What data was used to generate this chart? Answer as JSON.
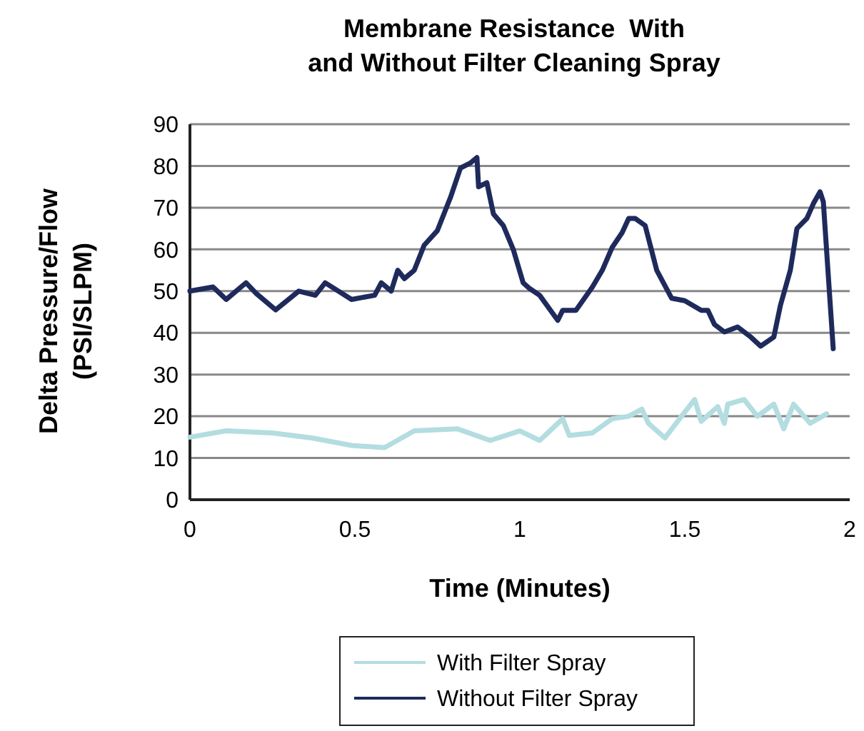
{
  "chart_data": {
    "type": "line",
    "title": "Membrane Resistance  With\nand Without Filter Cleaning Spray",
    "xlabel": "Time (Minutes)",
    "ylabel": "Delta Pressure/Flow\n(PSI/SLPM)",
    "xlim": [
      0,
      2
    ],
    "xticks": [
      0,
      0.5,
      1,
      1.5,
      2
    ],
    "ylim": [
      0,
      90
    ],
    "yticks": [
      0,
      10,
      20,
      30,
      40,
      50,
      60,
      70,
      80,
      90
    ],
    "grid": "y",
    "legend": "bottom",
    "line_style": "solid",
    "marker": "none",
    "series": [
      {
        "name": "With Filter Spray",
        "color": "#b3dde0",
        "x": [
          0,
          0.11,
          0.25,
          0.37,
          0.49,
          0.59,
          0.68,
          0.81,
          0.91,
          1.0,
          1.06,
          1.13,
          1.15,
          1.22,
          1.28,
          1.33,
          1.37,
          1.39,
          1.44,
          1.49,
          1.53,
          1.55,
          1.6,
          1.62,
          1.63,
          1.68,
          1.72,
          1.77,
          1.8,
          1.83,
          1.88,
          1.93
        ],
        "values": [
          15,
          16.5,
          16,
          14.8,
          13,
          12.5,
          16.5,
          17,
          14.2,
          16.5,
          14.2,
          19.4,
          15.4,
          16,
          19.4,
          20,
          21.7,
          18.3,
          14.8,
          20,
          24,
          18.8,
          22.3,
          18.3,
          22.9,
          24,
          20,
          22.9,
          17,
          22.9,
          18.3,
          20.6
        ]
      },
      {
        "name": "Without Filter Spray",
        "color": "#1f2a5c",
        "x": [
          0,
          0.07,
          0.11,
          0.17,
          0.2,
          0.26,
          0.33,
          0.38,
          0.41,
          0.49,
          0.56,
          0.58,
          0.61,
          0.63,
          0.65,
          0.68,
          0.71,
          0.75,
          0.79,
          0.82,
          0.85,
          0.87,
          0.875,
          0.9,
          0.92,
          0.95,
          0.98,
          1.01,
          1.03,
          1.06,
          1.115,
          1.13,
          1.17,
          1.22,
          1.25,
          1.28,
          1.31,
          1.33,
          1.35,
          1.38,
          1.415,
          1.46,
          1.5,
          1.55,
          1.57,
          1.59,
          1.62,
          1.66,
          1.7,
          1.73,
          1.77,
          1.79,
          1.82,
          1.84,
          1.87,
          1.89,
          1.91,
          1.92,
          1.95
        ],
        "values": [
          50,
          51,
          48,
          52,
          49.5,
          45.5,
          50,
          49,
          52,
          48,
          49,
          52,
          50,
          55,
          53,
          55,
          61,
          64.5,
          72.5,
          79.5,
          80.7,
          82,
          75,
          76,
          68.5,
          65.7,
          60,
          52,
          50.6,
          49,
          43,
          45.4,
          45.4,
          51,
          55,
          60.5,
          64,
          67.4,
          67.4,
          65.7,
          55,
          48.3,
          47.7,
          45.4,
          45.4,
          42,
          40.2,
          41.4,
          39,
          36.8,
          39,
          46.6,
          55,
          65,
          67.4,
          71,
          73.8,
          71.4,
          36.2
        ]
      }
    ]
  }
}
